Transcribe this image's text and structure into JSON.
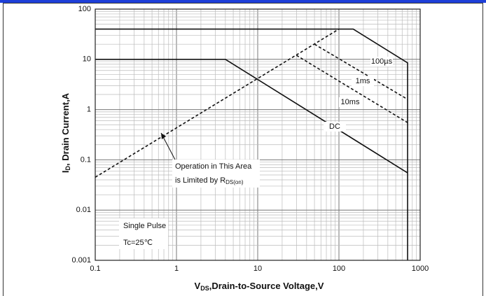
{
  "chart_data": {
    "type": "line",
    "x_label": {
      "main": "V",
      "sub": "DS",
      "rest": ",Drain-to-Source Voltage,V"
    },
    "y_label": {
      "main": "I",
      "sub": "D",
      "rest": ", Drain Current,A"
    },
    "xscale": "log",
    "yscale": "log",
    "grid": true,
    "minor_grid": true,
    "xlim": [
      0.1,
      1000
    ],
    "ylim": [
      0.001,
      100
    ],
    "xticks": [
      0.1,
      1,
      10,
      100,
      1000
    ],
    "yticks": [
      0.001,
      0.01,
      0.1,
      1,
      10,
      100
    ],
    "series": [
      {
        "name": "100µs",
        "color": "#111111",
        "dashed": false,
        "x": [
          0.1,
          150,
          700,
          700
        ],
        "values": [
          40,
          40,
          8.5,
          0.001
        ]
      },
      {
        "name": "DC",
        "color": "#111111",
        "dashed": false,
        "x": [
          0.1,
          4,
          700
        ],
        "values": [
          10,
          10,
          0.055
        ]
      },
      {
        "color": "#111111",
        "dashed": true,
        "x": [
          0.1,
          100
        ],
        "values": [
          0.045,
          40
        ]
      },
      {
        "name": "1ms",
        "color": "#111111",
        "dashed": true,
        "x": [
          50,
          700
        ],
        "values": [
          20,
          1.6
        ]
      },
      {
        "name": "10ms",
        "color": "#111111",
        "dashed": true,
        "x": [
          30,
          700
        ],
        "values": [
          12,
          0.55
        ]
      }
    ],
    "annotations": {
      "line1": "Operation in This Area",
      "line2": "is Limited by R",
      "line2_sub": "DS(on)",
      "pulse": "Single Pulse",
      "temp": "Tc=25℃"
    }
  }
}
